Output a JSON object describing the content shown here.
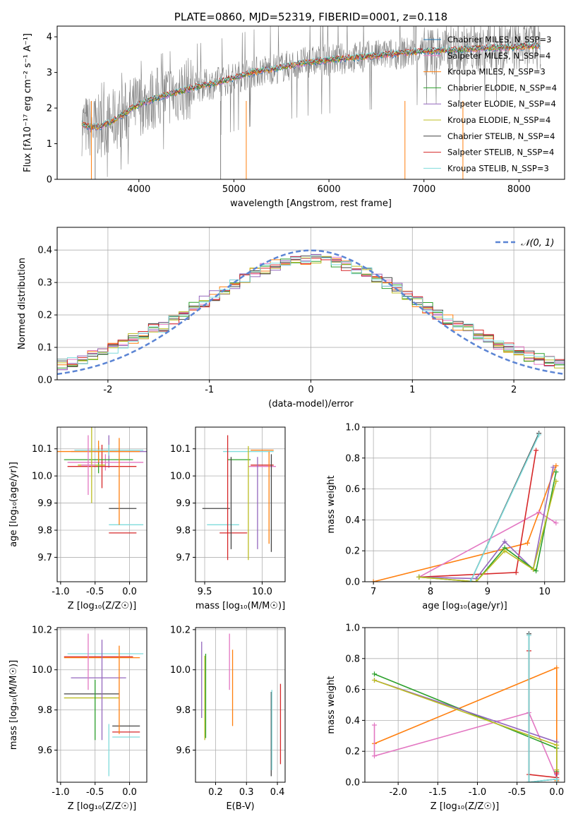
{
  "chart_data": [
    {
      "id": "spectrum",
      "type": "line",
      "title": "PLATE=0860, MJD=52319, FIBERID=0001, z=0.118",
      "xlabel": "wavelength [Angstrom, rest frame]",
      "ylabel": "Flux [fλ10⁻¹⁷ erg cm⁻² s⁻¹ A⁻¹]",
      "xlim": [
        3140,
        8480
      ],
      "ylim": [
        0,
        4.3
      ],
      "xticks": [
        4000,
        5000,
        6000,
        7000,
        8000
      ],
      "yticks": [
        0,
        1,
        2,
        3,
        4
      ],
      "grid": false,
      "legend_position": "top-right",
      "data_color": "#808080",
      "model_continuum": {
        "x": [
          3400,
          3500,
          3600,
          3700,
          3800,
          3900,
          4000,
          4100,
          4200,
          4400,
          4600,
          4800,
          5000,
          5200,
          5400,
          5600,
          5800,
          6000,
          6200,
          6400,
          6600,
          6800,
          7000,
          7200,
          7400,
          7600,
          7800,
          8000,
          8200
        ],
        "y": [
          1.55,
          1.45,
          1.5,
          1.6,
          1.75,
          1.95,
          2.1,
          2.2,
          2.3,
          2.45,
          2.6,
          2.7,
          2.85,
          3.0,
          3.1,
          3.2,
          3.3,
          3.35,
          3.4,
          3.45,
          3.5,
          3.55,
          3.6,
          3.62,
          3.65,
          3.68,
          3.7,
          3.72,
          3.75
        ]
      },
      "series": [
        {
          "name": "Chabrier MILES, N_SSP=3",
          "color": "#1f77b4"
        },
        {
          "name": "Salpeter MILES, N_SSP=4",
          "color": "#e377c2"
        },
        {
          "name": "Kroupa MILES, N_SSP=3",
          "color": "#ff7f0e"
        },
        {
          "name": "Chabrier ELODIE, N_SSP=4",
          "color": "#2ca02c"
        },
        {
          "name": "Salpeter ELODIE, N_SSP=4",
          "color": "#9467bd"
        },
        {
          "name": "Kroupa ELODIE, N_SSP=4",
          "color": "#bcbd22"
        },
        {
          "name": "Chabrier STELIB, N_SSP=4",
          "color": "#444444"
        },
        {
          "name": "Salpeter STELIB, N_SSP=4",
          "color": "#d62728"
        },
        {
          "name": "Kroupa STELIB, N_SSP=3",
          "color": "#7fdcdc"
        }
      ]
    },
    {
      "id": "residuals",
      "type": "line",
      "title": "",
      "xlabel": "(data-model)/error",
      "ylabel": "Normed distribution",
      "xlim": [
        -2.5,
        2.5
      ],
      "ylim": [
        0,
        0.47
      ],
      "xticks": [
        -2,
        -1,
        0,
        1,
        2
      ],
      "yticks": [
        0.0,
        0.1,
        0.2,
        0.3,
        0.4
      ],
      "grid": true,
      "legend_position": "top-right",
      "legend": "𝒩(0, 1)",
      "normal_color": "#5b84d4",
      "hist_colors": [
        "#e377c2",
        "#ff7f0e",
        "#2ca02c",
        "#9467bd",
        "#bcbd22",
        "#444444",
        "#d62728",
        "#7fdcdc"
      ]
    },
    {
      "id": "age-vs-Z",
      "type": "scatter",
      "title": "",
      "xlabel": "Z [log₁₀(Z/Z☉)]",
      "ylabel": "age  [log₁₀(age/yr)]",
      "xlim": [
        -1.05,
        0.25
      ],
      "ylim": [
        9.61,
        10.18
      ],
      "xticks": [
        -1.0,
        -0.5,
        0.0
      ],
      "yticks": [
        9.7,
        9.8,
        9.9,
        10.0,
        10.1
      ],
      "grid": true,
      "points": [
        {
          "x": -0.3,
          "y": 10.09,
          "xerr": 0.55,
          "yerr": 0.06,
          "color": "#9467bd"
        },
        {
          "x": -0.35,
          "y": 10.05,
          "xerr": 0.55,
          "yerr": 0.03,
          "color": "#e377c2"
        },
        {
          "x": -0.4,
          "y": 10.035,
          "xerr": 0.5,
          "yerr": 0.08,
          "color": "#d62728"
        },
        {
          "x": -0.45,
          "y": 10.06,
          "xerr": 0.5,
          "yerr": 0.05,
          "color": "#2ca02c"
        },
        {
          "x": -0.45,
          "y": 10.09,
          "xerr": 0.6,
          "yerr": 0.04,
          "color": "#ff7f0e"
        },
        {
          "x": -0.3,
          "y": 10.095,
          "xerr": 0.5,
          "yerr": 0.02,
          "color": "#7fdcdc"
        },
        {
          "x": -0.55,
          "y": 10.04,
          "xerr": 0.2,
          "yerr": 0.14,
          "color": "#bcbd22"
        },
        {
          "x": -0.6,
          "y": 10.04,
          "xerr": 0.1,
          "yerr": 0.11,
          "color": "#e377c2"
        },
        {
          "x": -0.1,
          "y": 9.88,
          "xerr": 0.2,
          "yerr": 0.0,
          "color": "#444444"
        },
        {
          "x": -0.05,
          "y": 9.82,
          "xerr": 0.25,
          "yerr": 0.0,
          "color": "#7fdcdc"
        },
        {
          "x": -0.1,
          "y": 9.79,
          "xerr": 0.2,
          "yerr": 0.0,
          "color": "#d62728"
        },
        {
          "x": -0.15,
          "y": 9.98,
          "xerr": 0.0,
          "yerr": 0.16,
          "color": "#ff7f0e"
        }
      ]
    },
    {
      "id": "age-vs-mass",
      "type": "scatter",
      "title": "",
      "xlabel": "mass [log₁₀(M/M☉)]",
      "ylabel": "",
      "xlim": [
        9.42,
        10.2
      ],
      "ylim": [
        9.61,
        10.18
      ],
      "xticks": [
        9.5,
        10.0
      ],
      "yticks": [
        9.7,
        9.8,
        9.9,
        10.0,
        10.1
      ],
      "grid": true,
      "points": [
        {
          "x": 9.6,
          "y": 9.88,
          "xerr": 0.12,
          "yerr": 0.0,
          "color": "#444444"
        },
        {
          "x": 9.66,
          "y": 9.82,
          "xerr": 0.14,
          "yerr": 0.0,
          "color": "#7fdcdc"
        },
        {
          "x": 9.75,
          "y": 9.79,
          "xerr": 0.12,
          "yerr": 0.0,
          "color": "#d62728"
        },
        {
          "x": 9.88,
          "y": 10.09,
          "xerr": 0.22,
          "yerr": 0.0,
          "color": "#7fdcdc"
        },
        {
          "x": 9.8,
          "y": 10.06,
          "xerr": 0.1,
          "yerr": 0.0,
          "color": "#2ca02c"
        },
        {
          "x": 10.0,
          "y": 10.035,
          "xerr": 0.12,
          "yerr": 0.0,
          "color": "#e377c2"
        },
        {
          "x": 10.0,
          "y": 10.095,
          "xerr": 0.1,
          "yerr": 0.0,
          "color": "#ff7f0e"
        },
        {
          "x": 10.0,
          "y": 10.04,
          "xerr": 0.1,
          "yerr": 0.0,
          "color": "#d62728"
        },
        {
          "x": 9.7,
          "y": 9.92,
          "xerr": 0.0,
          "yerr": 0.23,
          "color": "#d62728"
        },
        {
          "x": 9.73,
          "y": 9.9,
          "xerr": 0.0,
          "yerr": 0.17,
          "color": "#444444"
        },
        {
          "x": 9.88,
          "y": 9.9,
          "xerr": 0.0,
          "yerr": 0.21,
          "color": "#bcbd22"
        },
        {
          "x": 9.96,
          "y": 9.9,
          "xerr": 0.0,
          "yerr": 0.17,
          "color": "#9467bd"
        },
        {
          "x": 10.06,
          "y": 9.92,
          "xerr": 0.0,
          "yerr": 0.17,
          "color": "#ff7f0e"
        },
        {
          "x": 10.08,
          "y": 9.9,
          "xerr": 0.0,
          "yerr": 0.18,
          "color": "#444444"
        }
      ]
    },
    {
      "id": "massweight-vs-age",
      "type": "line",
      "title": "",
      "xlabel": "age  [log₁₀(age/yr)]",
      "ylabel": "mass weight",
      "xlim": [
        6.85,
        10.35
      ],
      "ylim": [
        0,
        1
      ],
      "xticks": [
        7,
        8,
        9,
        10
      ],
      "yticks": [
        0.0,
        0.2,
        0.4,
        0.6,
        0.8,
        1.0
      ],
      "grid": true,
      "series": [
        {
          "color": "#ff7f0e",
          "x": [
            7.0,
            9.7,
            10.2
          ],
          "y": [
            0.0,
            0.25,
            0.75
          ]
        },
        {
          "color": "#e377c2",
          "x": [
            7.8,
            9.9,
            10.2
          ],
          "y": [
            0.03,
            0.45,
            0.38
          ]
        },
        {
          "color": "#d62728",
          "x": [
            7.8,
            9.5,
            9.85
          ],
          "y": [
            0.03,
            0.06,
            0.85
          ]
        },
        {
          "color": "#9467bd",
          "x": [
            7.8,
            8.8,
            9.3,
            9.8,
            10.15
          ],
          "y": [
            0.03,
            0.02,
            0.26,
            0.08,
            0.74
          ]
        },
        {
          "color": "#2ca02c",
          "x": [
            7.8,
            8.8,
            9.3,
            9.85,
            10.2
          ],
          "y": [
            0.03,
            0.0,
            0.22,
            0.07,
            0.71
          ]
        },
        {
          "color": "#bcbd22",
          "x": [
            7.8,
            8.8,
            9.3,
            9.8,
            10.2
          ],
          "y": [
            0.03,
            0.0,
            0.2,
            0.08,
            0.65
          ]
        },
        {
          "color": "#444444",
          "x": [
            8.7,
            9.9
          ],
          "y": [
            0.0,
            0.96
          ]
        },
        {
          "color": "#7fdcdc",
          "x": [
            8.7,
            9.9
          ],
          "y": [
            0.0,
            0.95
          ]
        }
      ]
    },
    {
      "id": "mass-vs-Z",
      "type": "scatter",
      "title": "",
      "xlabel": "Z [log₁₀(Z/Z☉)]",
      "ylabel": "mass [log₁₀(M/M☉)]",
      "xlim": [
        -1.05,
        0.25
      ],
      "ylim": [
        9.44,
        10.21
      ],
      "xticks": [
        -1.0,
        -0.5,
        0.0
      ],
      "yticks": [
        9.6,
        9.8,
        10.0,
        10.2
      ],
      "grid": true,
      "points": [
        {
          "x": -0.35,
          "y": 10.08,
          "xerr": 0.55,
          "yerr": 0.0,
          "color": "#7fdcdc"
        },
        {
          "x": -0.4,
          "y": 10.06,
          "xerr": 0.55,
          "yerr": 0.0,
          "color": "#ff7f0e"
        },
        {
          "x": -0.45,
          "y": 10.065,
          "xerr": 0.5,
          "yerr": 0.0,
          "color": "#d62728"
        },
        {
          "x": -0.45,
          "y": 9.96,
          "xerr": 0.4,
          "yerr": 0.0,
          "color": "#9467bd"
        },
        {
          "x": -0.55,
          "y": 9.88,
          "xerr": 0.4,
          "yerr": 0.0,
          "color": "#444444"
        },
        {
          "x": -0.55,
          "y": 9.86,
          "xerr": 0.4,
          "yerr": 0.0,
          "color": "#bcbd22"
        },
        {
          "x": -0.05,
          "y": 9.72,
          "xerr": 0.2,
          "yerr": 0.0,
          "color": "#444444"
        },
        {
          "x": -0.05,
          "y": 9.69,
          "xerr": 0.2,
          "yerr": 0.0,
          "color": "#d62728"
        },
        {
          "x": -0.05,
          "y": 9.665,
          "xerr": 0.2,
          "yerr": 0.0,
          "color": "#7fdcdc"
        },
        {
          "x": -0.6,
          "y": 10.04,
          "xerr": 0.0,
          "yerr": 0.14,
          "color": "#e377c2"
        },
        {
          "x": -0.5,
          "y": 9.8,
          "xerr": 0.0,
          "yerr": 0.15,
          "color": "#2ca02c"
        },
        {
          "x": -0.4,
          "y": 9.9,
          "xerr": 0.0,
          "yerr": 0.25,
          "color": "#9467bd"
        },
        {
          "x": -0.3,
          "y": 9.6,
          "xerr": 0.0,
          "yerr": 0.13,
          "color": "#7fdcdc"
        },
        {
          "x": -0.15,
          "y": 9.9,
          "xerr": 0.0,
          "yerr": 0.22,
          "color": "#ff7f0e"
        }
      ]
    },
    {
      "id": "mass-vs-ebv",
      "type": "scatter",
      "title": "",
      "xlabel": "E(B-V)",
      "ylabel": "",
      "xlim": [
        0.135,
        0.425
      ],
      "ylim": [
        9.44,
        10.21
      ],
      "xticks": [
        0.2,
        0.3,
        0.4
      ],
      "yticks": [
        9.6,
        9.8,
        10.0,
        10.2
      ],
      "grid": true,
      "points": [
        {
          "x": 0.155,
          "y": 9.95,
          "xerr": 0.0,
          "yerr": 0.19,
          "color": "#9467bd"
        },
        {
          "x": 0.165,
          "y": 9.86,
          "xerr": 0.0,
          "yerr": 0.21,
          "color": "#bcbd22"
        },
        {
          "x": 0.168,
          "y": 9.87,
          "xerr": 0.0,
          "yerr": 0.21,
          "color": "#2ca02c"
        },
        {
          "x": 0.245,
          "y": 10.04,
          "xerr": 0.0,
          "yerr": 0.14,
          "color": "#e377c2"
        },
        {
          "x": 0.255,
          "y": 9.91,
          "xerr": 0.0,
          "yerr": 0.19,
          "color": "#ff7f0e"
        },
        {
          "x": 0.38,
          "y": 9.68,
          "xerr": 0.0,
          "yerr": 0.21,
          "color": "#444444"
        },
        {
          "x": 0.382,
          "y": 9.7,
          "xerr": 0.0,
          "yerr": 0.2,
          "color": "#7fdcdc"
        },
        {
          "x": 0.41,
          "y": 9.73,
          "xerr": 0.0,
          "yerr": 0.2,
          "color": "#d62728"
        }
      ]
    },
    {
      "id": "massweight-vs-Z",
      "type": "line",
      "title": "",
      "xlabel": "Z [log₁₀(Z/Z☉)]",
      "ylabel": "mass weight",
      "xlim": [
        -2.42,
        0.1
      ],
      "ylim": [
        0,
        1
      ],
      "xticks": [
        -2.0,
        -1.5,
        -1.0,
        -0.5,
        0.0
      ],
      "yticks": [
        0.0,
        0.2,
        0.4,
        0.6,
        0.8,
        1.0
      ],
      "grid": true,
      "series": [
        {
          "color": "#ff7f0e",
          "x": [
            -2.3,
            0.0,
            0.0
          ],
          "y": [
            0.25,
            0.74,
            0.01
          ]
        },
        {
          "color": "#e377c2",
          "x": [
            -2.3,
            -2.3,
            -0.35,
            0.0,
            0.0
          ],
          "y": [
            0.37,
            0.17,
            0.45,
            0.03,
            0.0
          ]
        },
        {
          "color": "#2ca02c",
          "x": [
            -2.3,
            0.0,
            0.0
          ],
          "y": [
            0.7,
            0.22,
            0.07
          ]
        },
        {
          "color": "#9467bd",
          "x": [
            -2.3,
            0.0,
            0.0
          ],
          "y": [
            0.66,
            0.26,
            0.05
          ]
        },
        {
          "color": "#bcbd22",
          "x": [
            -2.3,
            0.0,
            0.0
          ],
          "y": [
            0.66,
            0.24,
            0.08
          ]
        },
        {
          "color": "#d62728",
          "x": [
            -0.35,
            -0.35,
            0.0,
            0.0
          ],
          "y": [
            0.85,
            0.05,
            0.03,
            0.06
          ]
        },
        {
          "color": "#444444",
          "x": [
            -0.35,
            -0.35,
            0.0,
            0.0
          ],
          "y": [
            0.96,
            0.0,
            0.02,
            0.0
          ]
        },
        {
          "color": "#7fdcdc",
          "x": [
            -0.35,
            -0.35,
            0.0,
            0.0
          ],
          "y": [
            0.95,
            0.0,
            0.02,
            0.0
          ]
        }
      ]
    }
  ]
}
